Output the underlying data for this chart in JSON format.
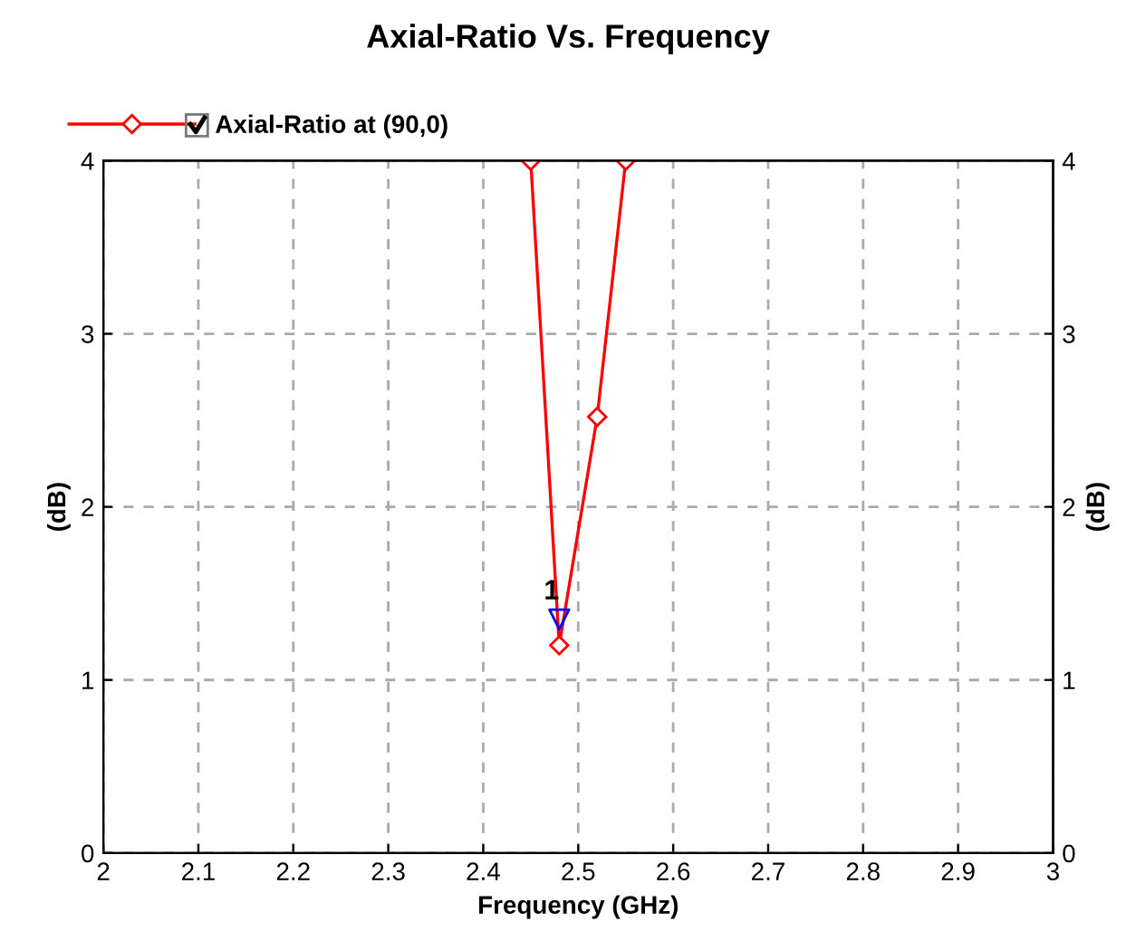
{
  "chart_data": {
    "type": "line",
    "title": "Axial-Ratio Vs. Frequency",
    "xlabel": "Frequency (GHz)",
    "ylabel": "(dB)",
    "y2label": "(dB)",
    "x": [
      2.45,
      2.48,
      2.52,
      2.55
    ],
    "series": [
      {
        "name": "Axial-Ratio at (90,0)",
        "color": "#ff0000",
        "values": [
          4,
          1.2,
          2.52,
          4
        ],
        "marker": "diamond"
      },
      {
        "type": "scatter",
        "color": "#0000ff",
        "x": [
          2.48
        ],
        "values": [
          1.35
        ],
        "marker": "triangle"
      }
    ],
    "annotations": [
      {
        "text": "1",
        "x": 2.48,
        "y": 1.35
      }
    ],
    "xlim": [
      2,
      3
    ],
    "xticks": [
      2,
      2.1,
      2.2,
      2.3,
      2.4,
      2.5,
      2.6,
      2.7,
      2.8,
      2.9,
      3
    ],
    "ylim": [
      0,
      4
    ],
    "yticks": [
      0,
      1,
      2,
      3,
      4
    ],
    "y2lim": [
      0,
      4
    ],
    "y2ticks": [
      0,
      1,
      2,
      3,
      4
    ],
    "grid": true,
    "legend": "top left"
  }
}
